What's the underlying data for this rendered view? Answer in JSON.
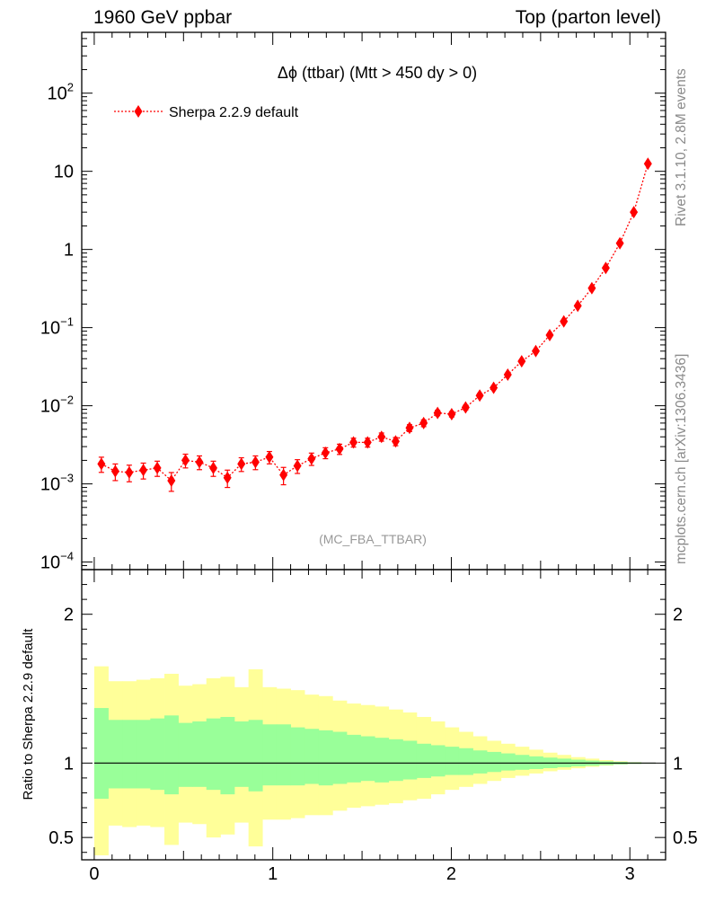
{
  "header": {
    "left": "1960 GeV ppbar",
    "right": "Top (parton level)"
  },
  "side_labels": {
    "rivet": "Rivet 3.1.10,  2.8M events",
    "mcplots": "mcplots.cern.ch [arXiv:1306.3436]"
  },
  "colors": {
    "series": "#ff0000",
    "band_inner": "#99ff99",
    "band_outer": "#ffff99",
    "axis": "#000000",
    "watermark": "#999999"
  },
  "chart_data": [
    {
      "type": "line",
      "panel": "main",
      "title": "Δϕ (ttbar) (Mtt > 450 dy > 0)",
      "watermark": "(MC_FBA_TTBAR)",
      "xlabel": "",
      "ylabel": "",
      "yscale": "log",
      "xlim": [
        -0.07,
        3.2
      ],
      "ylim": [
        8e-05,
        600
      ],
      "yticks": [
        {
          "label": "10",
          "sup": "2",
          "value": 100
        },
        {
          "label": "10",
          "sup": "",
          "value": 10
        },
        {
          "label": "1",
          "sup": "",
          "value": 1
        },
        {
          "label": "10",
          "sup": "−1",
          "value": 0.1
        },
        {
          "label": "10",
          "sup": "−2",
          "value": 0.01
        },
        {
          "label": "10",
          "sup": "−3",
          "value": 0.001
        },
        {
          "label": "10",
          "sup": "−4",
          "value": 0.0001
        }
      ],
      "legend": {
        "position": "top-left",
        "entries": [
          "Sherpa 2.2.9 default"
        ]
      },
      "series": [
        {
          "name": "Sherpa 2.2.9 default",
          "color": "#ff0000",
          "marker": "diamond",
          "line": "dotted",
          "x": [
            0.04,
            0.118,
            0.196,
            0.275,
            0.353,
            0.432,
            0.511,
            0.589,
            0.667,
            0.746,
            0.824,
            0.903,
            0.981,
            1.06,
            1.138,
            1.217,
            1.295,
            1.374,
            1.452,
            1.531,
            1.609,
            1.688,
            1.766,
            1.845,
            1.923,
            2.002,
            2.08,
            2.159,
            2.237,
            2.316,
            2.394,
            2.473,
            2.551,
            2.63,
            2.708,
            2.787,
            2.865,
            2.944,
            3.022,
            3.101
          ],
          "y": [
            0.0018,
            0.00145,
            0.0014,
            0.0015,
            0.0016,
            0.0011,
            0.002,
            0.0019,
            0.0016,
            0.0012,
            0.0018,
            0.0019,
            0.0022,
            0.0013,
            0.0017,
            0.0021,
            0.0025,
            0.0028,
            0.0034,
            0.0034,
            0.004,
            0.0035,
            0.0052,
            0.006,
            0.0081,
            0.0078,
            0.0095,
            0.0135,
            0.017,
            0.025,
            0.037,
            0.05,
            0.08,
            0.12,
            0.19,
            0.32,
            0.58,
            1.2,
            3.0,
            12.5
          ],
          "yerr_rel": [
            0.22,
            0.24,
            0.24,
            0.23,
            0.22,
            0.27,
            0.2,
            0.2,
            0.22,
            0.25,
            0.2,
            0.2,
            0.18,
            0.25,
            0.2,
            0.18,
            0.16,
            0.15,
            0.13,
            0.13,
            0.12,
            0.12,
            0.1,
            0.1,
            0.08,
            0.08,
            0.07,
            0.06,
            0.05,
            0.045,
            0.04,
            0.035,
            0.03,
            0.025,
            0.02,
            0.02,
            0.015,
            0.012,
            0.01,
            0.008
          ]
        }
      ]
    },
    {
      "type": "area",
      "panel": "ratio",
      "ylabel": "Ratio to Sherpa 2.2.9 default",
      "xlabel": "",
      "xlim": [
        -0.07,
        3.2
      ],
      "ylim": [
        0.35,
        2.3
      ],
      "xticks": [
        0,
        1,
        2,
        3
      ],
      "yticks": [
        0.5,
        1,
        2
      ],
      "reference": 1.0,
      "bin_edges": [
        0,
        0.0785,
        0.157,
        0.236,
        0.314,
        0.393,
        0.471,
        0.55,
        0.628,
        0.707,
        0.785,
        0.864,
        0.942,
        1.021,
        1.1,
        1.178,
        1.257,
        1.335,
        1.414,
        1.492,
        1.571,
        1.649,
        1.728,
        1.806,
        1.885,
        1.963,
        2.042,
        2.121,
        2.199,
        2.278,
        2.356,
        2.435,
        2.513,
        2.592,
        2.67,
        2.749,
        2.827,
        2.906,
        2.985,
        3.063,
        3.142
      ],
      "series": [
        {
          "name": "",
          "color": "#99ff99",
          "lo": [
            0.76,
            0.83,
            0.83,
            0.83,
            0.82,
            0.79,
            0.84,
            0.84,
            0.82,
            0.79,
            0.84,
            0.81,
            0.85,
            0.85,
            0.85,
            0.86,
            0.85,
            0.86,
            0.87,
            0.88,
            0.87,
            0.88,
            0.89,
            0.9,
            0.91,
            0.92,
            0.92,
            0.93,
            0.94,
            0.95,
            0.955,
            0.96,
            0.966,
            0.972,
            0.978,
            0.982,
            0.987,
            0.991,
            0.994,
            0.997
          ],
          "hi": [
            1.37,
            1.29,
            1.29,
            1.29,
            1.3,
            1.32,
            1.27,
            1.28,
            1.3,
            1.31,
            1.28,
            1.29,
            1.26,
            1.26,
            1.24,
            1.23,
            1.22,
            1.21,
            1.19,
            1.18,
            1.17,
            1.16,
            1.15,
            1.13,
            1.12,
            1.11,
            1.1,
            1.085,
            1.075,
            1.065,
            1.055,
            1.045,
            1.037,
            1.03,
            1.023,
            1.017,
            1.012,
            1.008,
            1.005,
            1.002
          ]
        },
        {
          "name": "",
          "color": "#ffff99",
          "lo": [
            0.38,
            0.58,
            0.57,
            0.58,
            0.57,
            0.45,
            0.6,
            0.59,
            0.5,
            0.52,
            0.6,
            0.44,
            0.62,
            0.62,
            0.63,
            0.65,
            0.65,
            0.68,
            0.7,
            0.71,
            0.72,
            0.73,
            0.75,
            0.76,
            0.79,
            0.82,
            0.84,
            0.86,
            0.88,
            0.9,
            0.915,
            0.93,
            0.945,
            0.955,
            0.965,
            0.975,
            0.983,
            0.99,
            0.995,
            0.998
          ],
          "hi": [
            1.65,
            1.55,
            1.55,
            1.56,
            1.57,
            1.6,
            1.52,
            1.53,
            1.57,
            1.58,
            1.51,
            1.63,
            1.51,
            1.5,
            1.49,
            1.46,
            1.45,
            1.42,
            1.4,
            1.39,
            1.38,
            1.36,
            1.34,
            1.31,
            1.28,
            1.24,
            1.21,
            1.18,
            1.15,
            1.13,
            1.11,
            1.09,
            1.07,
            1.055,
            1.04,
            1.03,
            1.02,
            1.012,
            1.006,
            1.002
          ]
        }
      ]
    }
  ]
}
